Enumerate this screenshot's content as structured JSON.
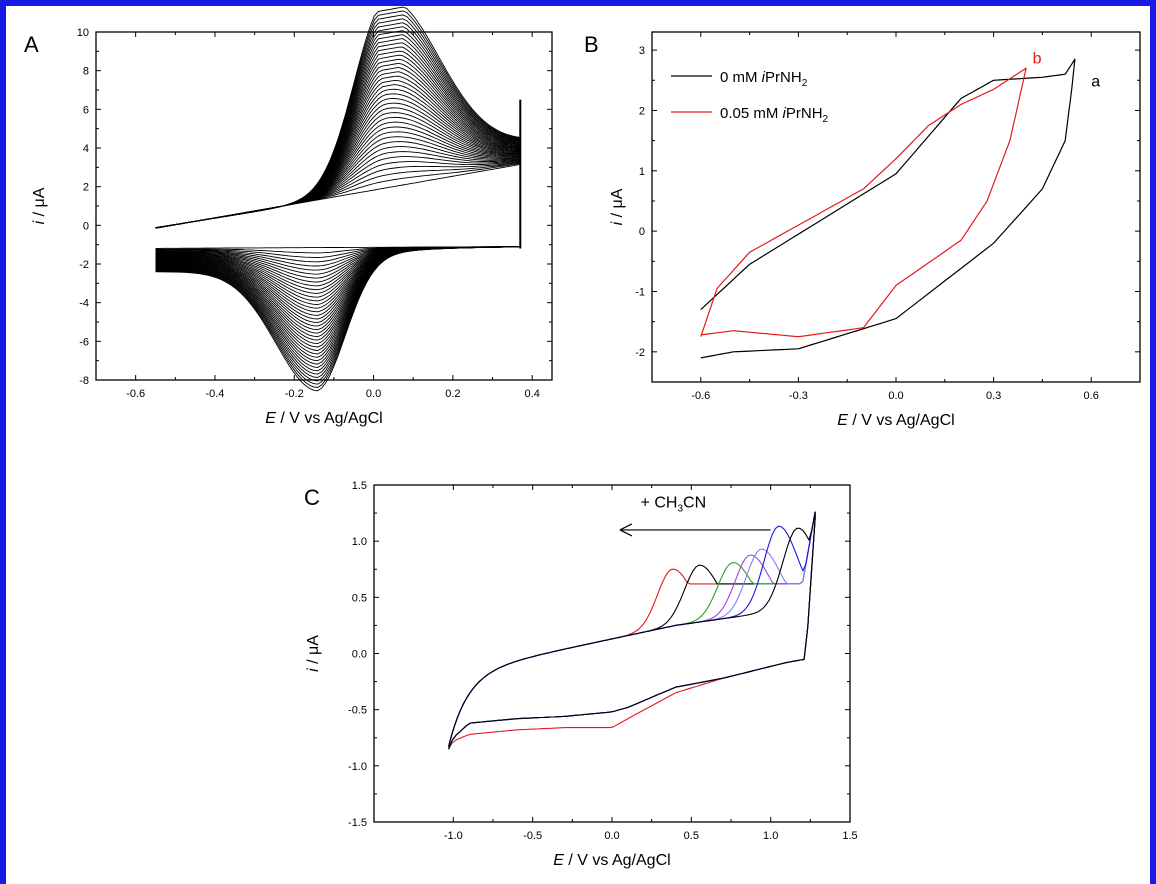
{
  "border_color": "#1a1ae6",
  "panels": {
    "A": {
      "letter": "A",
      "ylabel_var": "i",
      "ylabel_unit": " / μA",
      "xlabel_var": "E",
      "xlabel_unit": " / V  vs Ag/AgCl"
    },
    "B": {
      "letter": "B",
      "ylabel_var": "i",
      "ylabel_unit": " / μA",
      "xlabel_var": "E",
      "xlabel_unit": " / V vs Ag/AgCl",
      "legend": [
        {
          "prefix": "0 mM ",
          "italic": "i",
          "main": "PrNH",
          "sub": "2"
        },
        {
          "prefix": "0.05 mM ",
          "italic": "i",
          "main": "PrNH",
          "sub": "2"
        }
      ],
      "curve_labels": [
        "a",
        "b"
      ]
    },
    "C": {
      "letter": "C",
      "ylabel_var": "i",
      "ylabel_unit": " / μA",
      "xlabel_var": "E",
      "xlabel_unit": " / V vs Ag/AgCl",
      "annotation": {
        "pre": "+ CH",
        "sub": "3",
        "post": "CN"
      }
    }
  },
  "chart_data": [
    {
      "type": "line",
      "panel": "A",
      "xlim": [
        -0.7,
        0.45
      ],
      "ylim": [
        -8,
        10
      ],
      "xticks": [
        "-0.6",
        "-0.4",
        "-0.2",
        "0.0",
        "0.2",
        "0.4"
      ],
      "yticks": [
        "-8",
        "-6",
        "-4",
        "-2",
        "0",
        "2",
        "4",
        "6",
        "8",
        "10"
      ],
      "x_range": [
        -0.55,
        0.37
      ],
      "cycles": 40,
      "final_peaks": {
        "anodic": {
          "x": 0.03,
          "y": 8.7
        },
        "cathodic": {
          "x": -0.14,
          "y": -6.2
        }
      },
      "colors": [
        "#000000"
      ]
    },
    {
      "type": "line",
      "panel": "B",
      "xlim": [
        -0.75,
        0.75
      ],
      "ylim": [
        -2.5,
        3.3
      ],
      "xticks": [
        "-0.6",
        "-0.3",
        "0.0",
        "0.3",
        "0.6"
      ],
      "yticks": [
        "-2",
        "-1",
        "0",
        "1",
        "2",
        "3"
      ],
      "series": [
        {
          "label": "a",
          "color": "#000000",
          "x_range": [
            -0.6,
            0.55
          ],
          "anodic": [
            [
              -0.6,
              -1.3
            ],
            [
              -0.45,
              -0.55
            ],
            [
              -0.3,
              -0.05
            ],
            [
              0.0,
              0.95
            ],
            [
              0.2,
              2.2
            ],
            [
              0.3,
              2.5
            ],
            [
              0.45,
              2.55
            ],
            [
              0.52,
              2.6
            ],
            [
              0.55,
              2.85
            ]
          ],
          "cathodic": [
            [
              0.54,
              2.35
            ],
            [
              0.52,
              1.5
            ],
            [
              0.45,
              0.7
            ],
            [
              0.3,
              -0.2
            ],
            [
              0.0,
              -1.45
            ],
            [
              -0.3,
              -1.95
            ],
            [
              -0.5,
              -2.0
            ],
            [
              -0.6,
              -2.1
            ]
          ]
        },
        {
          "label": "b",
          "color": "#e41a1c",
          "x_range": [
            -0.6,
            0.4
          ],
          "anodic": [
            [
              -0.6,
              -1.75
            ],
            [
              -0.55,
              -0.95
            ],
            [
              -0.45,
              -0.35
            ],
            [
              -0.3,
              0.1
            ],
            [
              -0.1,
              0.7
            ],
            [
              0.0,
              1.2
            ],
            [
              0.1,
              1.75
            ],
            [
              0.2,
              2.1
            ],
            [
              0.3,
              2.35
            ],
            [
              0.4,
              2.7
            ]
          ],
          "cathodic": [
            [
              0.4,
              2.7
            ],
            [
              0.35,
              1.5
            ],
            [
              0.28,
              0.5
            ],
            [
              0.2,
              -0.15
            ],
            [
              0.0,
              -0.9
            ],
            [
              -0.1,
              -1.6
            ],
            [
              -0.3,
              -1.75
            ],
            [
              -0.5,
              -1.65
            ],
            [
              -0.6,
              -1.72
            ]
          ]
        }
      ]
    },
    {
      "type": "line",
      "panel": "C",
      "xlim": [
        -1.5,
        1.5
      ],
      "ylim": [
        -1.5,
        1.5
      ],
      "xticks": [
        "-1.0",
        "-0.5",
        "0.0",
        "0.5",
        "1.0",
        "1.5"
      ],
      "yticks": [
        "-1.5",
        "-1.0",
        "-0.5",
        "0.0",
        "0.5",
        "1.0",
        "1.5"
      ],
      "series": [
        {
          "color": "#e41a1c",
          "peak": [
            0.38,
            0.87
          ]
        },
        {
          "color": "#000000",
          "peak": [
            0.55,
            0.88
          ]
        },
        {
          "color": "#2ca02c",
          "peak": [
            0.76,
            0.87
          ]
        },
        {
          "color": "#a040e0",
          "peak": [
            0.87,
            0.93
          ]
        },
        {
          "color": "#8080ff",
          "peak": [
            0.94,
            0.98
          ]
        },
        {
          "color": "#1a1ae6",
          "peak": [
            1.05,
            1.2
          ]
        },
        {
          "color": "#000000",
          "peak": [
            1.17,
            1.16
          ]
        }
      ]
    }
  ]
}
